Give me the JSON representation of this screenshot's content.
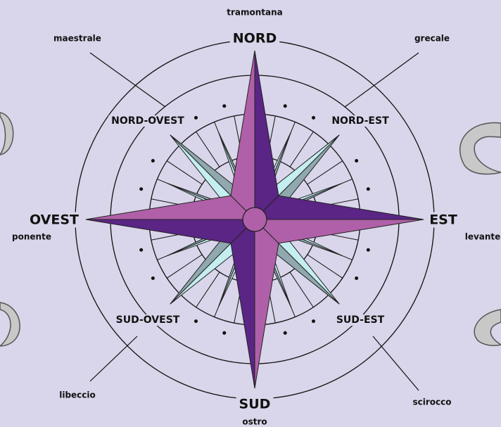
{
  "directions": [
    {
      "label": "NORD",
      "wind": "tramontana"
    },
    {
      "label": "NORD-EST",
      "wind": "grecale"
    },
    {
      "label": "EST",
      "wind": "levante"
    },
    {
      "label": "SUD-EST",
      "wind": "scirocco"
    },
    {
      "label": "SUD",
      "wind": "ostro"
    },
    {
      "label": "SUD-OVEST",
      "wind": "libeccio"
    },
    {
      "label": "OVEST",
      "wind": "ponente"
    },
    {
      "label": "NORD-OVEST",
      "wind": "maestrale"
    }
  ]
}
